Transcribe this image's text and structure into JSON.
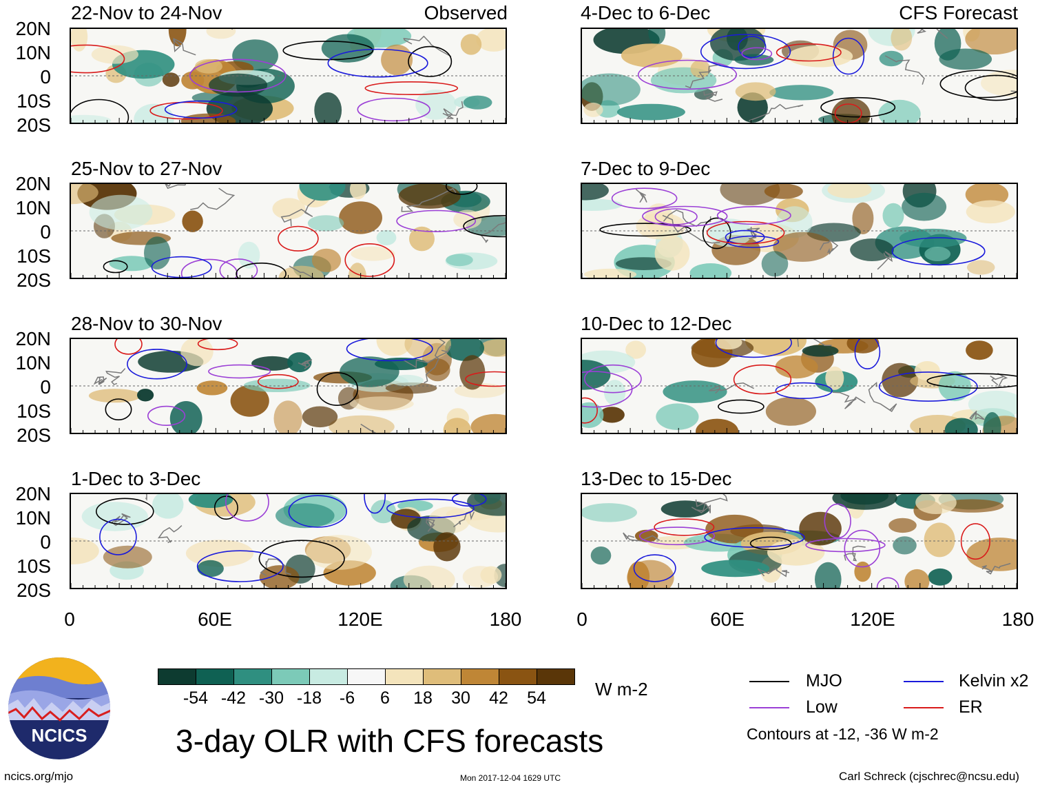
{
  "figure": {
    "title": "3-day OLR with CFS forecasts",
    "observed_label": "Observed",
    "forecast_label": "CFS Forecast",
    "units": "W m-2",
    "contour_note": "Contours at -12, -36 W m-2"
  },
  "axes": {
    "lat_ticks": [
      "20N",
      "10N",
      "0",
      "10S",
      "20S"
    ],
    "lon_ticks": [
      "0",
      "60E",
      "120E",
      "180"
    ]
  },
  "chart_data": {
    "type": "heatmap",
    "title": "3-day OLR with CFS forecasts",
    "variable": "OLR anomaly",
    "units": "W m-2",
    "lat_range": [
      -20,
      20
    ],
    "lon_range": [
      0,
      180
    ],
    "panels": [
      {
        "period": "22-Nov to 24-Nov",
        "kind": "Observed"
      },
      {
        "period": "25-Nov to 27-Nov",
        "kind": "Observed"
      },
      {
        "period": "28-Nov to 30-Nov",
        "kind": "Observed"
      },
      {
        "period": "1-Dec to 3-Dec",
        "kind": "Observed"
      },
      {
        "period": "4-Dec to 6-Dec",
        "kind": "CFS Forecast"
      },
      {
        "period": "7-Dec to 9-Dec",
        "kind": "CFS Forecast"
      },
      {
        "period": "10-Dec to 12-Dec",
        "kind": "CFS Forecast"
      },
      {
        "period": "13-Dec to 15-Dec",
        "kind": "CFS Forecast"
      }
    ],
    "colorbar": {
      "labels": [
        "-54",
        "-42",
        "-30",
        "-18",
        "-6",
        "6",
        "18",
        "30",
        "42",
        "54"
      ],
      "colors": [
        "#0d3b30",
        "#0f6153",
        "#2f8f80",
        "#7ccab8",
        "#c8ebe2",
        "#f7f7f7",
        "#f4e4bc",
        "#dfbd7a",
        "#bf8636",
        "#8a5412",
        "#5a3608"
      ]
    },
    "legend": [
      {
        "name": "MJO",
        "color": "#000000"
      },
      {
        "name": "Kelvin x2",
        "color": "#1a1adb"
      },
      {
        "name": "Low",
        "color": "#9b3fd6"
      },
      {
        "name": "ER",
        "color": "#d91a1a"
      }
    ]
  },
  "footer": {
    "left": "ncics.org/mjo",
    "center": "Mon 2017-12-04 1629 UTC",
    "right": "Carl Schreck (cjschrec@ncsu.edu)",
    "logo_text": "NCICS"
  }
}
